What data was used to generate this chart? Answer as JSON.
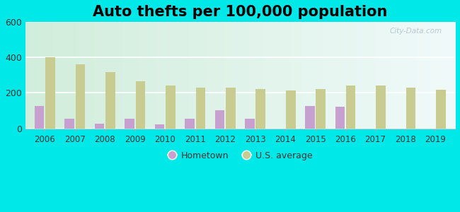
{
  "title": "Auto thefts per 100,000 population",
  "years": [
    2006,
    2007,
    2008,
    2009,
    2010,
    2011,
    2012,
    2013,
    2014,
    2015,
    2016,
    2017,
    2018,
    2019
  ],
  "hometown": [
    125,
    55,
    25,
    55,
    22,
    55,
    100,
    55,
    0,
    125,
    120,
    0,
    0,
    0
  ],
  "us_average": [
    400,
    362,
    318,
    265,
    243,
    230,
    230,
    222,
    213,
    222,
    243,
    243,
    230,
    218
  ],
  "hometown_color": "#c8a0d0",
  "us_avg_color": "#c8cc90",
  "bar_width": 0.32,
  "ylim": [
    0,
    600
  ],
  "yticks": [
    0,
    200,
    400,
    600
  ],
  "outer_bg": "#00e8e8",
  "plot_bg_left": "#d8f0d8",
  "plot_bg_right": "#e8f8f0",
  "title_fontsize": 15,
  "watermark": "City-Data.com",
  "legend_hometown": "Hometown",
  "legend_us": "U.S. average"
}
